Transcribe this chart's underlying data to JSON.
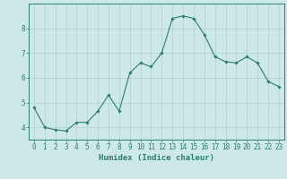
{
  "x": [
    0,
    1,
    2,
    3,
    4,
    5,
    6,
    7,
    8,
    9,
    10,
    11,
    12,
    13,
    14,
    15,
    16,
    17,
    18,
    19,
    20,
    21,
    22,
    23
  ],
  "y": [
    4.8,
    4.0,
    3.9,
    3.85,
    4.2,
    4.2,
    4.65,
    5.3,
    4.65,
    6.2,
    6.6,
    6.45,
    7.0,
    8.4,
    8.5,
    8.4,
    7.75,
    6.85,
    6.65,
    6.6,
    6.85,
    6.6,
    5.85,
    5.65
  ],
  "line_color": "#2d7d6e",
  "marker": "D",
  "marker_size": 1.8,
  "background_color": "#cce8e8",
  "grid_color": "#b0cfcf",
  "xlabel": "Humidex (Indice chaleur)",
  "xlim": [
    -0.5,
    23.5
  ],
  "ylim": [
    3.5,
    9.0
  ],
  "yticks": [
    4,
    5,
    6,
    7,
    8
  ],
  "xticks": [
    0,
    1,
    2,
    3,
    4,
    5,
    6,
    7,
    8,
    9,
    10,
    11,
    12,
    13,
    14,
    15,
    16,
    17,
    18,
    19,
    20,
    21,
    22,
    23
  ],
  "tick_color": "#2d7d6e",
  "label_fontsize": 6.5,
  "tick_fontsize": 5.5
}
